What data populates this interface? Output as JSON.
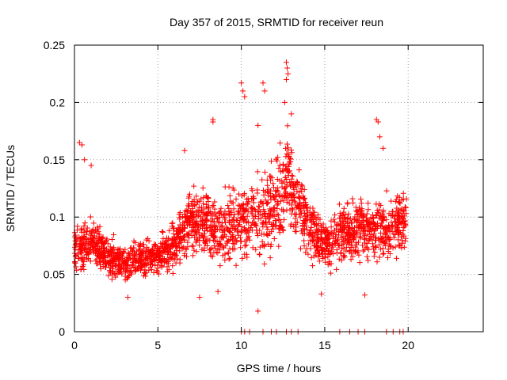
{
  "chart_data": {
    "type": "scatter",
    "title": "Day 357 of 2015, SRMTID for receiver reun",
    "xlabel": "GPS time / hours",
    "ylabel": "SRMTID / TECUs",
    "xlim": [
      0,
      24.5
    ],
    "ylim": [
      0,
      0.25
    ],
    "xticks": [
      0,
      5,
      10,
      15,
      20
    ],
    "xtick_labels": [
      "0",
      "5",
      "10",
      "15",
      "20"
    ],
    "yticks": [
      0,
      0.05,
      0.1,
      0.15,
      0.2,
      0.25
    ],
    "ytick_labels": [
      "0",
      "0.05",
      "0.1",
      "0.15",
      "0.2",
      "0.25"
    ],
    "grid": true,
    "marker": "+",
    "color": "#ff0000",
    "trend": {
      "description": "approximate median SRMTID vs hour (estimated from figure)",
      "x": [
        0,
        1,
        2,
        3,
        4,
        5,
        6,
        7,
        8,
        9,
        10,
        11,
        12,
        12.7,
        13.5,
        14,
        15,
        16,
        17,
        18,
        19,
        19.9
      ],
      "y": [
        0.07,
        0.08,
        0.065,
        0.06,
        0.065,
        0.065,
        0.075,
        0.1,
        0.095,
        0.09,
        0.095,
        0.1,
        0.11,
        0.13,
        0.11,
        0.09,
        0.075,
        0.085,
        0.09,
        0.09,
        0.09,
        0.1
      ]
    },
    "spread": {
      "description": "approximate half-width of point cloud vs hour",
      "x": [
        0,
        1,
        2,
        3,
        4,
        5,
        6,
        7,
        8,
        9,
        10,
        11,
        12,
        12.7,
        13.5,
        14,
        15,
        16,
        17,
        18,
        19,
        19.9
      ],
      "y": [
        0.02,
        0.025,
        0.02,
        0.018,
        0.02,
        0.02,
        0.025,
        0.03,
        0.035,
        0.035,
        0.04,
        0.04,
        0.045,
        0.05,
        0.04,
        0.03,
        0.025,
        0.03,
        0.03,
        0.035,
        0.03,
        0.03
      ]
    },
    "highlights": [
      {
        "x": 0.3,
        "y": 0.165
      },
      {
        "x": 0.45,
        "y": 0.163
      },
      {
        "x": 0.6,
        "y": 0.15
      },
      {
        "x": 1.0,
        "y": 0.145
      },
      {
        "x": 6.6,
        "y": 0.158
      },
      {
        "x": 8.3,
        "y": 0.185
      },
      {
        "x": 8.3,
        "y": 0.183
      },
      {
        "x": 10.0,
        "y": 0.217
      },
      {
        "x": 10.1,
        "y": 0.21
      },
      {
        "x": 10.2,
        "y": 0.205
      },
      {
        "x": 11.3,
        "y": 0.217
      },
      {
        "x": 11.4,
        "y": 0.21
      },
      {
        "x": 11.0,
        "y": 0.18
      },
      {
        "x": 12.7,
        "y": 0.235
      },
      {
        "x": 12.75,
        "y": 0.23
      },
      {
        "x": 12.8,
        "y": 0.225
      },
      {
        "x": 12.7,
        "y": 0.22
      },
      {
        "x": 12.6,
        "y": 0.2
      },
      {
        "x": 13.0,
        "y": 0.19
      },
      {
        "x": 18.1,
        "y": 0.185
      },
      {
        "x": 18.2,
        "y": 0.183
      },
      {
        "x": 18.3,
        "y": 0.17
      },
      {
        "x": 18.5,
        "y": 0.16
      },
      {
        "x": 11.0,
        "y": 0.018
      },
      {
        "x": 7.5,
        "y": 0.03
      },
      {
        "x": 8.6,
        "y": 0.035
      },
      {
        "x": 14.8,
        "y": 0.033
      },
      {
        "x": 17.4,
        "y": 0.032
      },
      {
        "x": 3.2,
        "y": 0.03
      }
    ],
    "zero_points_x": [
      10.0,
      10.2,
      10.5,
      11.3,
      11.8,
      12.1,
      12.7,
      13.0,
      13.4,
      15.9,
      16.5,
      17.0,
      17.4,
      18.7,
      19.1,
      19.5,
      19.7
    ]
  }
}
